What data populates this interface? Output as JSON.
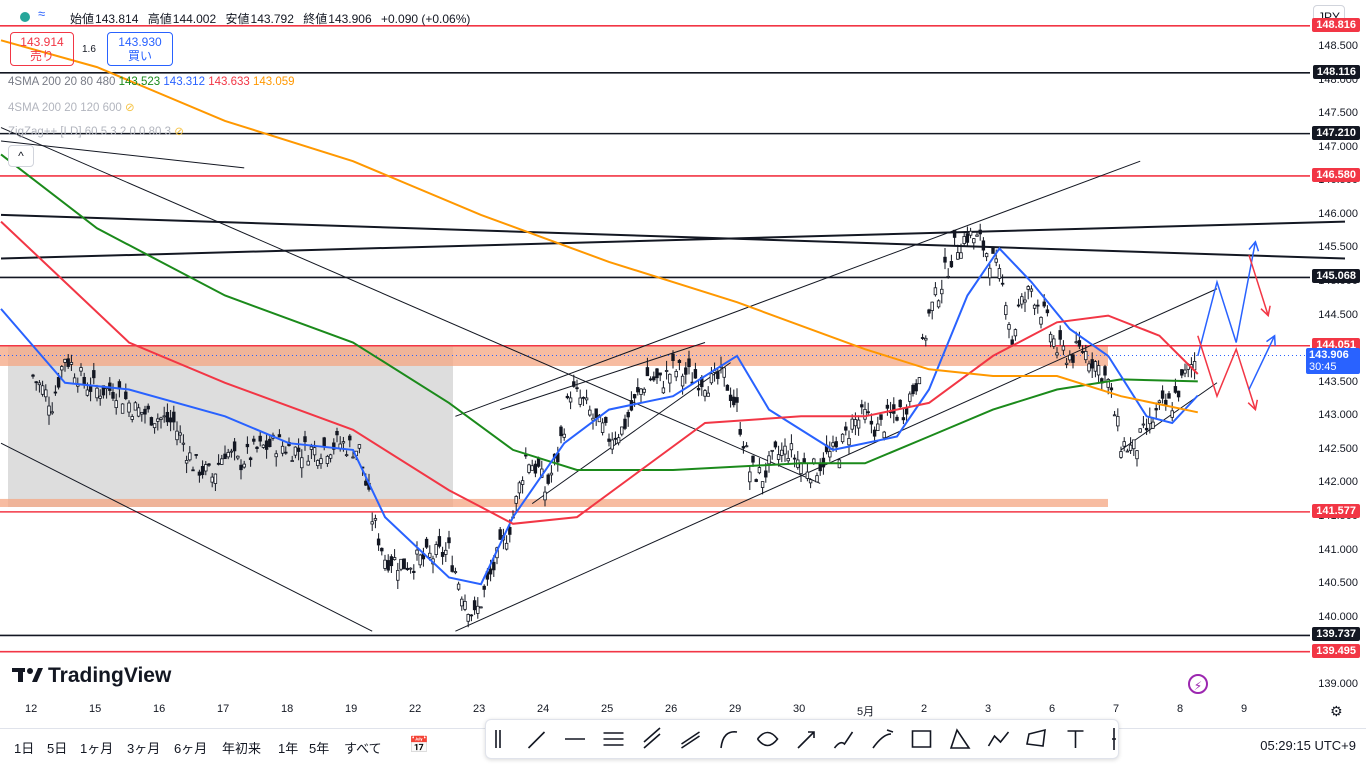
{
  "header": {
    "ohlc": [
      {
        "label": "始値",
        "value": "143.814"
      },
      {
        "label": "高値",
        "value": "144.002"
      },
      {
        "label": "安値",
        "value": "143.792"
      },
      {
        "label": "終値",
        "value": "143.906"
      }
    ],
    "change": "+0.090 (+0.06%)",
    "currency": "JPY"
  },
  "trade": {
    "sell_price": "143.914",
    "sell_label": "売り",
    "spread": "1.6",
    "buy_price": "143.930",
    "buy_label": "買い"
  },
  "indicators": [
    {
      "name": "4SMA 200 20 80 480",
      "values": [
        "143.523",
        "143.312",
        "143.633",
        "143.059"
      ],
      "colors": [
        "#1b8a1b",
        "#2962ff",
        "#f23645",
        "#ff9800"
      ],
      "muted": false
    },
    {
      "name": "4SMA 200 20 120 600",
      "values": [],
      "colors": [],
      "muted": true
    },
    {
      "name": "ZigZag++ [LD] 60 5 3 2 0 0 80 3",
      "values": [],
      "colors": [],
      "muted": true
    }
  ],
  "collapse_glyph": "^",
  "price_axis": {
    "tick_labels": [
      "148.500",
      "148.000",
      "147.500",
      "147.000",
      "146.500",
      "146.000",
      "145.500",
      "145.000",
      "144.500",
      "143.500",
      "143.000",
      "142.500",
      "142.000",
      "141.500",
      "141.000",
      "140.500",
      "140.000",
      "139.500",
      "139.000"
    ],
    "tags": [
      {
        "value": "148.816",
        "color": "#f23645"
      },
      {
        "value": "148.116",
        "color": "#131722"
      },
      {
        "value": "147.210",
        "color": "#131722"
      },
      {
        "value": "146.580",
        "color": "#f23645"
      },
      {
        "value": "145.068",
        "color": "#131722"
      },
      {
        "value": "144.051",
        "color": "#f23645"
      },
      {
        "value": "141.577",
        "color": "#f23645"
      },
      {
        "value": "139.737",
        "color": "#131722"
      },
      {
        "value": "139.495",
        "color": "#f23645"
      }
    ],
    "current": {
      "value": "143.906",
      "countdown": "30:45",
      "color": "#2962ff"
    }
  },
  "time_axis": {
    "labels": [
      "12",
      "15",
      "16",
      "17",
      "18",
      "19",
      "22",
      "23",
      "24",
      "25",
      "26",
      "29",
      "30",
      "5月",
      "2",
      "3",
      "6",
      "7",
      "8",
      "9"
    ]
  },
  "chart_data": {
    "type": "candlestick",
    "symbol_currency": "JPY",
    "ylim": [
      138.85,
      149.2
    ],
    "x_categories": [
      "12",
      "15",
      "16",
      "17",
      "18",
      "19",
      "22",
      "23",
      "24",
      "25",
      "26",
      "29",
      "30",
      "5月",
      "2",
      "3",
      "6",
      "7",
      "8",
      "9"
    ],
    "ohlc_latest": {
      "open": 143.814,
      "high": 144.002,
      "low": 143.792,
      "close": 143.906,
      "change": 0.09,
      "change_pct": 0.06
    },
    "close_path": [
      [
        0,
        143.6
      ],
      [
        0.3,
        143.2
      ],
      [
        0.5,
        143.9
      ],
      [
        0.8,
        143.5
      ],
      [
        1.0,
        143.4
      ],
      [
        1.3,
        143.4
      ],
      [
        1.6,
        143.1
      ],
      [
        1.9,
        143.0
      ],
      [
        2.2,
        142.9
      ],
      [
        2.5,
        142.3
      ],
      [
        2.8,
        142.1
      ],
      [
        3.0,
        142.5
      ],
      [
        3.2,
        142.3
      ],
      [
        3.5,
        142.5
      ],
      [
        3.8,
        142.6
      ],
      [
        4.1,
        142.5
      ],
      [
        4.4,
        142.5
      ],
      [
        4.8,
        142.6
      ],
      [
        5.1,
        142.5
      ],
      [
        5.3,
        141.5
      ],
      [
        5.5,
        140.9
      ],
      [
        5.8,
        140.8
      ],
      [
        6.2,
        140.9
      ],
      [
        6.5,
        141.0
      ],
      [
        6.7,
        140.4
      ],
      [
        6.9,
        140.0
      ],
      [
        7.1,
        140.5
      ],
      [
        7.3,
        141.0
      ],
      [
        7.5,
        141.5
      ],
      [
        7.7,
        142.4
      ],
      [
        7.9,
        142.2
      ],
      [
        8.0,
        141.9
      ],
      [
        8.2,
        142.4
      ],
      [
        8.4,
        143.4
      ],
      [
        8.6,
        143.2
      ],
      [
        8.8,
        142.9
      ],
      [
        9.0,
        142.7
      ],
      [
        9.2,
        142.8
      ],
      [
        9.4,
        143.2
      ],
      [
        9.6,
        143.6
      ],
      [
        9.8,
        143.5
      ],
      [
        10.0,
        143.7
      ],
      [
        10.3,
        143.6
      ],
      [
        10.6,
        143.5
      ],
      [
        10.8,
        143.6
      ],
      [
        11.0,
        143.1
      ],
      [
        11.2,
        142.2
      ],
      [
        11.4,
        142.1
      ],
      [
        11.6,
        142.4
      ],
      [
        11.8,
        142.5
      ],
      [
        12.0,
        142.3
      ],
      [
        12.2,
        142.2
      ],
      [
        12.4,
        142.4
      ],
      [
        12.6,
        142.5
      ],
      [
        12.8,
        142.9
      ],
      [
        13.0,
        143.0
      ],
      [
        13.2,
        142.8
      ],
      [
        13.4,
        143.0
      ],
      [
        13.6,
        143.1
      ],
      [
        13.8,
        143.5
      ],
      [
        14.0,
        144.5
      ],
      [
        14.2,
        145.0
      ],
      [
        14.4,
        145.5
      ],
      [
        14.6,
        145.7
      ],
      [
        14.8,
        145.6
      ],
      [
        15.0,
        145.3
      ],
      [
        15.2,
        144.8
      ],
      [
        15.3,
        144.1
      ],
      [
        15.4,
        144.6
      ],
      [
        15.6,
        144.9
      ],
      [
        15.8,
        144.5
      ],
      [
        16.0,
        144.0
      ],
      [
        16.2,
        143.9
      ],
      [
        16.4,
        144.0
      ],
      [
        16.6,
        143.8
      ],
      [
        16.8,
        143.5
      ],
      [
        17.0,
        142.6
      ],
      [
        17.2,
        142.5
      ],
      [
        17.4,
        142.8
      ],
      [
        17.6,
        143.1
      ],
      [
        17.8,
        143.2
      ],
      [
        18.0,
        143.6
      ],
      [
        18.2,
        143.9
      ]
    ],
    "moving_averages": [
      {
        "period": 200,
        "color": "#1b8a1b",
        "last": 143.523
      },
      {
        "period": 20,
        "color": "#2962ff",
        "last": 143.312
      },
      {
        "period": 80,
        "color": "#f23645",
        "last": 143.633
      },
      {
        "period": 480,
        "color": "#ff9800",
        "last": 143.059
      }
    ],
    "horizontal_levels": [
      148.816,
      148.116,
      147.21,
      146.58,
      145.068,
      144.051,
      141.577,
      139.737,
      139.495
    ],
    "zones": [
      {
        "from": 143.75,
        "to": 144.05,
        "color": "#f4a582"
      },
      {
        "from": 141.65,
        "to": 141.77,
        "color": "#f4a582"
      }
    ],
    "grid": false,
    "legend": "top-left"
  }
}
